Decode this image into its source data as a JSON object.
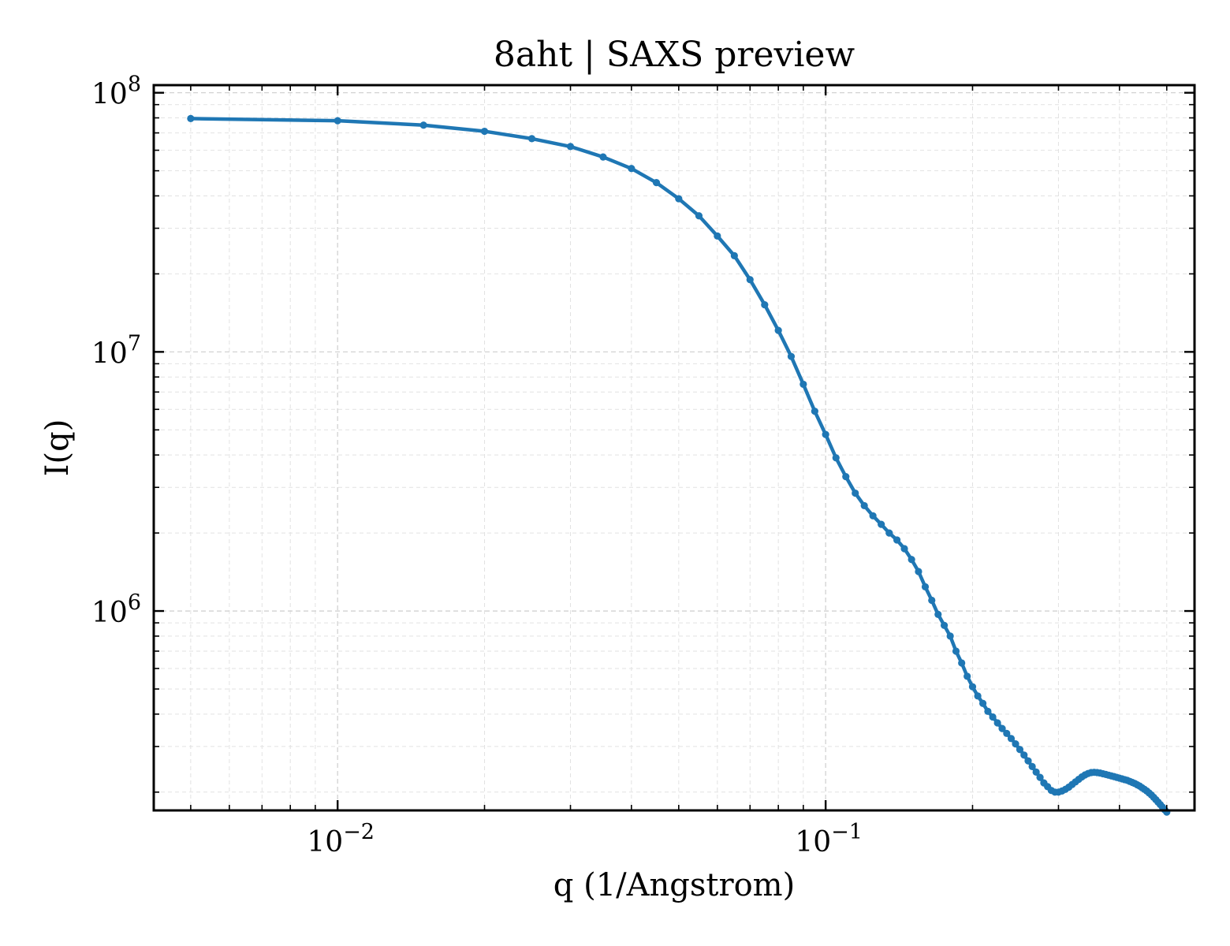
{
  "chart_data": {
    "type": "line",
    "title": "8aht | SAXS preview",
    "xlabel": "q (1/Angstrom)",
    "ylabel": "I(q)",
    "xscale": "log",
    "yscale": "log",
    "xlim": [
      0.0042,
      0.57
    ],
    "ylim": [
      170000,
      107000000
    ],
    "grid": true,
    "legend": "none",
    "x_ticks": [
      {
        "value": 0.01,
        "base": "10",
        "exp": "−2"
      },
      {
        "value": 0.1,
        "base": "10",
        "exp": "−1"
      }
    ],
    "y_ticks": [
      {
        "value": 1000000,
        "base": "10",
        "exp": "6"
      },
      {
        "value": 10000000,
        "base": "10",
        "exp": "7"
      },
      {
        "value": 100000000,
        "base": "10",
        "exp": "8"
      }
    ],
    "series": [
      {
        "color": "#1f77b4",
        "x": [
          0.005,
          0.01,
          0.015,
          0.02,
          0.025,
          0.03,
          0.035,
          0.04,
          0.045,
          0.05,
          0.055,
          0.06,
          0.065,
          0.07,
          0.075,
          0.08,
          0.085,
          0.09,
          0.095,
          0.1,
          0.105,
          0.11,
          0.115,
          0.12,
          0.125,
          0.13,
          0.135,
          0.14,
          0.145,
          0.15,
          0.155,
          0.16,
          0.165,
          0.17,
          0.175,
          0.18,
          0.185,
          0.19,
          0.195,
          0.2,
          0.205,
          0.21,
          0.215,
          0.22,
          0.225,
          0.23,
          0.235,
          0.24,
          0.245,
          0.25,
          0.255,
          0.26,
          0.265,
          0.27,
          0.275,
          0.28,
          0.285,
          0.29,
          0.295,
          0.3,
          0.305,
          0.31,
          0.315,
          0.32,
          0.325,
          0.33,
          0.335,
          0.34,
          0.345,
          0.35,
          0.355,
          0.36,
          0.365,
          0.37,
          0.375,
          0.38,
          0.385,
          0.39,
          0.395,
          0.4,
          0.405,
          0.41,
          0.415,
          0.42,
          0.425,
          0.43,
          0.435,
          0.44,
          0.445,
          0.45,
          0.455,
          0.46,
          0.465,
          0.47,
          0.475,
          0.48,
          0.485,
          0.49,
          0.495,
          0.5
        ],
        "y": [
          79500000,
          78000000,
          75000000,
          71000000,
          66500000,
          62000000,
          56500000,
          51000000,
          45000000,
          39000000,
          33500000,
          28000000,
          23500000,
          19000000,
          15200000,
          12100000,
          9600000,
          7500000,
          5900000,
          4800000,
          3900000,
          3300000,
          2850000,
          2550000,
          2330000,
          2160000,
          2000000,
          1880000,
          1740000,
          1580000,
          1420000,
          1240000,
          1100000,
          970000,
          880000,
          800000,
          700000,
          630000,
          560000,
          510000,
          470000,
          440000,
          410000,
          390000,
          370000,
          352000,
          337000,
          322000,
          307000,
          292000,
          278000,
          264000,
          251000,
          239000,
          228000,
          217000,
          210000,
          203000,
          200000,
          200000,
          202000,
          205000,
          209000,
          214000,
          219000,
          224000,
          229000,
          233000,
          236000,
          238000,
          238500,
          238000,
          237000,
          235500,
          234000,
          232500,
          231000,
          229500,
          228000,
          226500,
          225000,
          223500,
          222000,
          220000,
          218000,
          216000,
          213500,
          211000,
          208000,
          205000,
          202000,
          198500,
          195000,
          191000,
          187000,
          183000,
          179000,
          175000,
          171000,
          167500
        ]
      }
    ]
  }
}
